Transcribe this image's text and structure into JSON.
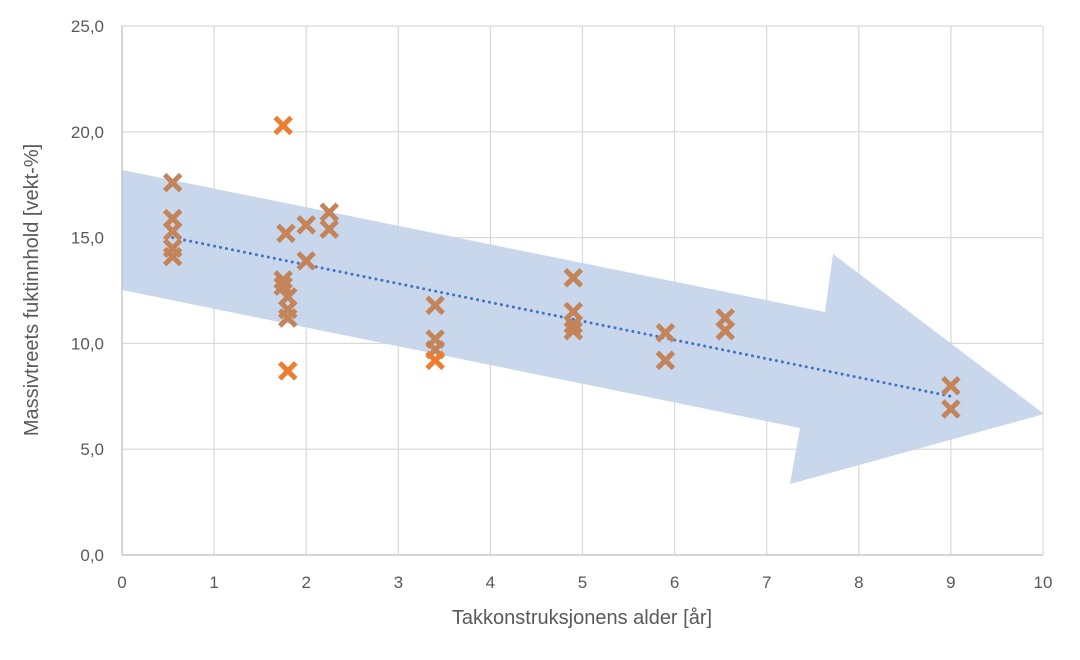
{
  "chart_data": {
    "type": "scatter",
    "title": "",
    "xlabel": "Takkonstruksjonens alder [år]",
    "ylabel": "Massivtreets fuktinnhold [vekt-%]",
    "xlim": [
      0,
      10
    ],
    "ylim": [
      0,
      25
    ],
    "x_ticks": [
      "0",
      "1",
      "2",
      "3",
      "4",
      "5",
      "6",
      "7",
      "8",
      "9",
      "10"
    ],
    "y_ticks": [
      "0,0",
      "5,0",
      "10,0",
      "15,0",
      "20,0",
      "25,0"
    ],
    "grid": true,
    "legend": "none",
    "colors": {
      "marker": "#ED7D31",
      "marker_overlapped": "#C4845A",
      "trendline": "#4472C4",
      "arrow": "#C5D5EB",
      "grid": "#D9D9D9",
      "axis": "#BFBFBF"
    },
    "trendline": {
      "style": "dotted",
      "from": [
        0.55,
        15.0
      ],
      "to": [
        9.0,
        7.5
      ]
    },
    "background_arrow": true,
    "series": [
      {
        "marker": "x",
        "points": [
          [
            0.55,
            17.6
          ],
          [
            0.55,
            15.9
          ],
          [
            0.55,
            15.3
          ],
          [
            0.55,
            14.5
          ],
          [
            0.55,
            14.1
          ],
          [
            1.75,
            20.3
          ],
          [
            1.78,
            15.2
          ],
          [
            1.75,
            13.0
          ],
          [
            1.75,
            12.7
          ],
          [
            1.8,
            12.2
          ],
          [
            1.8,
            11.6
          ],
          [
            1.8,
            11.2
          ],
          [
            1.8,
            8.7
          ],
          [
            2.0,
            15.6
          ],
          [
            2.0,
            13.9
          ],
          [
            2.25,
            16.2
          ],
          [
            2.25,
            15.4
          ],
          [
            3.4,
            11.8
          ],
          [
            3.4,
            10.2
          ],
          [
            3.4,
            9.7
          ],
          [
            3.4,
            9.2
          ],
          [
            4.9,
            13.1
          ],
          [
            4.9,
            11.5
          ],
          [
            4.9,
            10.9
          ],
          [
            4.9,
            10.6
          ],
          [
            5.9,
            10.5
          ],
          [
            5.9,
            9.2
          ],
          [
            6.55,
            11.2
          ],
          [
            6.55,
            10.6
          ],
          [
            9.0,
            8.0
          ],
          [
            9.0,
            6.9
          ]
        ]
      }
    ]
  }
}
